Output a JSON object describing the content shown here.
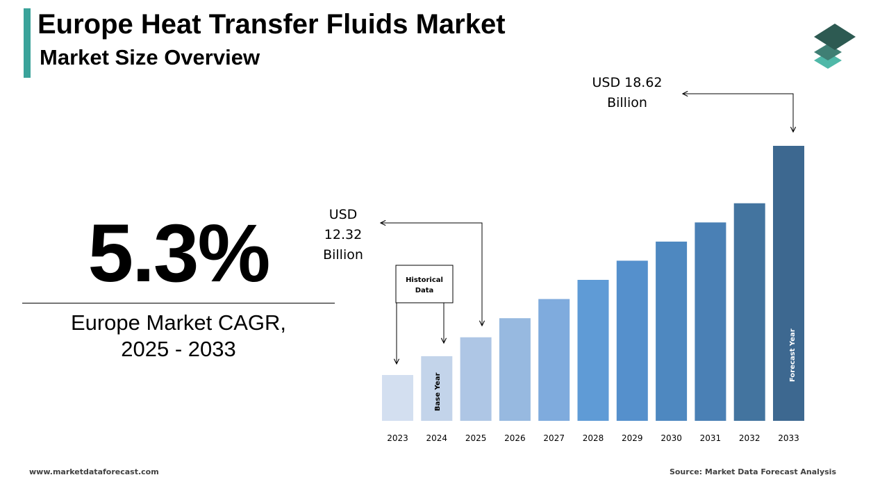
{
  "header": {
    "title": "Europe Heat Transfer Fluids Market",
    "subtitle": "Market Size Overview",
    "accent_color": "#3aa39a"
  },
  "logo": {
    "icon": "stacked-layers-icon",
    "colors": [
      "#2d5a52",
      "#3f7f74",
      "#4fb8a8"
    ]
  },
  "kpi": {
    "cagr_value": "5.3%",
    "cagr_label_line1": "Europe Market CAGR,",
    "cagr_label_line2": "2025 - 2033"
  },
  "callouts": {
    "start": {
      "line1": "USD",
      "line2": "12.32",
      "line3": "Billion"
    },
    "end": {
      "line1": "USD 18.62",
      "line2": "Billion"
    },
    "historical": {
      "line1": "Historical",
      "line2": "Data"
    },
    "base_year": "Base Year",
    "forecast_year": "Forecast Year"
  },
  "chart_data": {
    "type": "bar",
    "categories": [
      "2023",
      "2024",
      "2025",
      "2026",
      "2027",
      "2028",
      "2029",
      "2030",
      "2031",
      "2032",
      "2033"
    ],
    "values": [
      11.08,
      11.7,
      12.32,
      12.95,
      13.58,
      14.21,
      14.84,
      15.47,
      16.1,
      16.73,
      18.62
    ],
    "value_note_labels": {
      "2025": "USD 12.32 Billion",
      "2033": "USD 18.62 Billion"
    },
    "colors": [
      "#d3dff0",
      "#c3d4ea",
      "#aec6e5",
      "#97b9e0",
      "#7fabdd",
      "#5f9bd6",
      "#5590cc",
      "#4e88c0",
      "#4a80b5",
      "#43749f",
      "#3d6890"
    ]
  },
  "footer": {
    "website": "www.marketdataforecast.com",
    "source": "Source: Market Data Forecast Analysis"
  }
}
